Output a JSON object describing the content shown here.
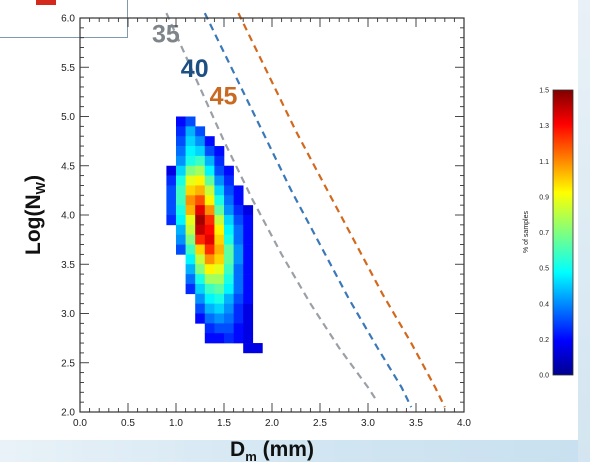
{
  "chart_data": {
    "type": "heatmap",
    "title": "",
    "xlabel": "D",
    "xlabel_sub": "m",
    "xlabel_unit": " (mm)",
    "ylabel": "Log(N",
    "ylabel_sub": "W",
    "ylabel_end": ")",
    "xlim": [
      0.0,
      4.0
    ],
    "ylim": [
      2.0,
      6.0
    ],
    "xticks": [
      "0.0",
      "0.5",
      "1.0",
      "1.5",
      "2.0",
      "2.5",
      "3.0",
      "3.5",
      "4.0"
    ],
    "yticks": [
      "2.0",
      "2.5",
      "3.0",
      "3.5",
      "4.0",
      "4.5",
      "5.0",
      "5.5",
      "6.0"
    ],
    "cell_size": 0.1,
    "cells": [
      {
        "y": 4.95,
        "x_start": 1.05,
        "values": [
          0.2,
          0.3
        ]
      },
      {
        "y": 4.85,
        "x_start": 1.05,
        "values": [
          0.25,
          0.45,
          0.3
        ]
      },
      {
        "y": 4.75,
        "x_start": 1.05,
        "values": [
          0.3,
          0.5,
          0.4,
          0.2
        ]
      },
      {
        "y": 4.65,
        "x_start": 1.05,
        "values": [
          0.35,
          0.55,
          0.5,
          0.3,
          0.2
        ]
      },
      {
        "y": 4.55,
        "x_start": 1.05,
        "values": [
          0.4,
          0.6,
          0.65,
          0.45,
          0.25
        ]
      },
      {
        "y": 4.45,
        "x_start": 0.95,
        "values": [
          0.15,
          0.5,
          0.75,
          0.8,
          0.55,
          0.3,
          0.2
        ]
      },
      {
        "y": 4.35,
        "x_start": 0.95,
        "values": [
          0.25,
          0.6,
          0.9,
          0.95,
          0.7,
          0.4,
          0.25
        ]
      },
      {
        "y": 4.25,
        "x_start": 0.95,
        "values": [
          0.3,
          0.65,
          1.0,
          1.05,
          0.85,
          0.5,
          0.3,
          0.2
        ]
      },
      {
        "y": 4.15,
        "x_start": 0.95,
        "values": [
          0.3,
          0.65,
          1.1,
          1.2,
          0.95,
          0.6,
          0.35,
          0.2
        ]
      },
      {
        "y": 4.05,
        "x_start": 0.95,
        "values": [
          0.3,
          0.6,
          1.05,
          1.35,
          1.1,
          0.7,
          0.4,
          0.25,
          0.15
        ]
      },
      {
        "y": 3.95,
        "x_start": 0.95,
        "values": [
          0.25,
          0.55,
          0.9,
          1.45,
          1.25,
          0.85,
          0.5,
          0.3,
          0.2
        ]
      },
      {
        "y": 3.85,
        "x_start": 1.05,
        "values": [
          0.45,
          0.85,
          1.4,
          1.3,
          0.95,
          0.55,
          0.35,
          0.2
        ]
      },
      {
        "y": 3.75,
        "x_start": 1.05,
        "values": [
          0.4,
          0.75,
          1.25,
          1.35,
          1.0,
          0.6,
          0.35,
          0.2
        ]
      },
      {
        "y": 3.65,
        "x_start": 1.05,
        "values": [
          0.3,
          0.65,
          1.0,
          1.25,
          1.05,
          0.7,
          0.4,
          0.2
        ]
      },
      {
        "y": 3.55,
        "x_start": 1.15,
        "values": [
          0.55,
          0.85,
          1.1,
          1.0,
          0.7,
          0.4,
          0.2
        ]
      },
      {
        "y": 3.45,
        "x_start": 1.15,
        "values": [
          0.45,
          0.75,
          0.95,
          0.9,
          0.65,
          0.35,
          0.2
        ]
      },
      {
        "y": 3.35,
        "x_start": 1.15,
        "values": [
          0.35,
          0.6,
          0.8,
          0.8,
          0.6,
          0.35,
          0.2
        ]
      },
      {
        "y": 3.25,
        "x_start": 1.15,
        "values": [
          0.25,
          0.5,
          0.65,
          0.7,
          0.55,
          0.35,
          0.2
        ]
      },
      {
        "y": 3.15,
        "x_start": 1.25,
        "values": [
          0.4,
          0.55,
          0.6,
          0.45,
          0.3,
          0.2
        ]
      },
      {
        "y": 3.05,
        "x_start": 1.25,
        "values": [
          0.3,
          0.45,
          0.5,
          0.4,
          0.25,
          0.15
        ]
      },
      {
        "y": 2.95,
        "x_start": 1.25,
        "values": [
          0.2,
          0.35,
          0.4,
          0.35,
          0.25,
          0.15
        ]
      },
      {
        "y": 2.85,
        "x_start": 1.35,
        "values": [
          0.25,
          0.3,
          0.3,
          0.2,
          0.15
        ]
      },
      {
        "y": 2.75,
        "x_start": 1.35,
        "values": [
          0.2,
          0.2,
          0.25,
          0.2,
          0.15
        ]
      },
      {
        "y": 2.65,
        "x_start": 1.75,
        "values": [
          0.15,
          0.15
        ]
      }
    ],
    "curves": [
      {
        "name": "35",
        "color": "#9aa0a6",
        "label_color": "#7d848a",
        "points": [
          [
            0.9,
            6.05
          ],
          [
            1.2,
            5.4
          ],
          [
            1.5,
            4.75
          ],
          [
            1.8,
            4.15
          ],
          [
            2.1,
            3.6
          ],
          [
            2.4,
            3.1
          ],
          [
            2.7,
            2.65
          ],
          [
            3.0,
            2.25
          ],
          [
            3.1,
            2.1
          ]
        ],
        "label_at": [
          0.75,
          5.75
        ]
      },
      {
        "name": "40",
        "color": "#3b78b8",
        "label_color": "#1d4f82",
        "points": [
          [
            1.3,
            6.05
          ],
          [
            1.6,
            5.45
          ],
          [
            1.9,
            4.85
          ],
          [
            2.2,
            4.25
          ],
          [
            2.5,
            3.7
          ],
          [
            2.8,
            3.15
          ],
          [
            3.1,
            2.65
          ],
          [
            3.35,
            2.25
          ],
          [
            3.45,
            2.05
          ]
        ],
        "label_at": [
          1.05,
          5.4
        ]
      },
      {
        "name": "45",
        "color": "#d2691e",
        "label_color": "#c96a22",
        "points": [
          [
            1.65,
            6.05
          ],
          [
            1.95,
            5.45
          ],
          [
            2.25,
            4.85
          ],
          [
            2.55,
            4.3
          ],
          [
            2.85,
            3.75
          ],
          [
            3.15,
            3.2
          ],
          [
            3.45,
            2.7
          ],
          [
            3.7,
            2.25
          ],
          [
            3.8,
            2.05
          ]
        ],
        "label_at": [
          1.35,
          5.12
        ]
      }
    ],
    "colorbar": {
      "label": "% of samples",
      "min": 0.0,
      "max": 1.5,
      "ticks": [
        "0.0",
        "0.2",
        "0.4",
        "0.5",
        "0.7",
        "0.9",
        "1.1",
        "1.3",
        "1.5"
      ],
      "colormap": "jet"
    },
    "grid": false
  }
}
